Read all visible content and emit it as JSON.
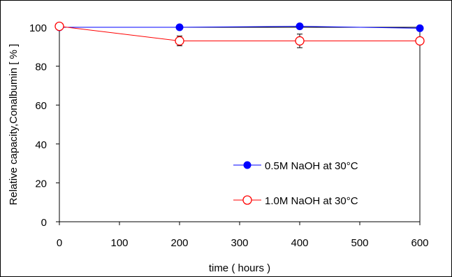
{
  "chart_data": {
    "type": "line",
    "xlabel": "time ( hours )",
    "ylabel": "Relative capacity,Conalbumin [ % ]",
    "xlim": [
      0,
      600
    ],
    "ylim": [
      0,
      100
    ],
    "x_ticks": [
      0,
      100,
      200,
      300,
      400,
      500,
      600
    ],
    "y_ticks": [
      0,
      20,
      40,
      60,
      80,
      100
    ],
    "grid": false,
    "legend_position": "lower-right",
    "series": [
      {
        "name": "0.5M NaOH at 30°C",
        "color": "#0000ff",
        "marker": "filled-circle",
        "points": [
          {
            "x": 0,
            "y": 100
          },
          {
            "x": 200,
            "y": 100
          },
          {
            "x": 400,
            "y": 100.5
          },
          {
            "x": 600,
            "y": 99.5
          }
        ]
      },
      {
        "name": "1.0M NaOH  at 30°C",
        "color": "#ff0000",
        "marker": "open-circle",
        "points": [
          {
            "x": 0,
            "y": 100.5,
            "err": 0
          },
          {
            "x": 200,
            "y": 93,
            "err": 2.5
          },
          {
            "x": 400,
            "y": 93,
            "err": 3.5
          },
          {
            "x": 600,
            "y": 93,
            "err": 1.5
          }
        ]
      }
    ]
  }
}
